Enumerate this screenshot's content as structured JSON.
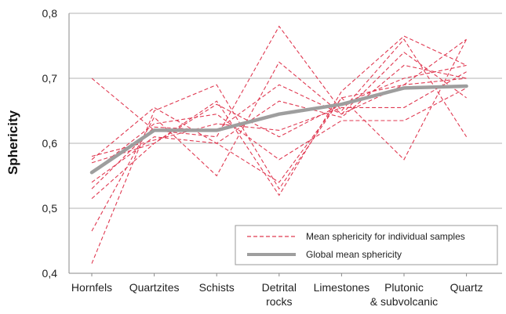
{
  "chart_data": {
    "type": "line",
    "title": "",
    "xlabel": "",
    "ylabel": "Sphericity",
    "ylim": [
      0.4,
      0.8
    ],
    "yticks": [
      "0,4",
      "0,5",
      "0,6",
      "0,7",
      "0,8"
    ],
    "categories": [
      [
        "Hornfels"
      ],
      [
        "Quartzites"
      ],
      [
        "Schists"
      ],
      [
        "Detrital",
        "rocks"
      ],
      [
        "Limestones"
      ],
      [
        "Plutonic",
        "& subvolcanic"
      ],
      [
        "Quartz"
      ]
    ],
    "grid": true,
    "legend_position": "bottom-right",
    "colors": {
      "samples": "#e03a52",
      "global": "#9e9e9e",
      "grid": "#b3b3b3"
    },
    "legend": {
      "samples_label": "Mean sphericity for individual samples",
      "global_label": "Global mean sphericity"
    },
    "samples": [
      [
        0.7,
        0.62,
        0.61,
        0.78,
        0.65,
        0.76,
        0.61
      ],
      [
        0.415,
        0.65,
        0.69,
        0.53,
        0.67,
        0.575,
        0.76
      ],
      [
        0.465,
        0.64,
        0.55,
        0.725,
        0.645,
        0.74,
        0.67
      ],
      [
        0.515,
        0.6,
        0.665,
        0.52,
        0.68,
        0.765,
        0.72
      ],
      [
        0.54,
        0.61,
        0.6,
        0.665,
        0.64,
        0.72,
        0.7
      ],
      [
        0.555,
        0.63,
        0.645,
        0.575,
        0.635,
        0.635,
        0.685
      ],
      [
        0.57,
        0.6,
        0.66,
        0.61,
        0.66,
        0.7,
        0.72
      ],
      [
        0.575,
        0.655,
        0.6,
        0.54,
        0.67,
        0.69,
        0.76
      ],
      [
        0.58,
        0.605,
        0.63,
        0.62,
        0.655,
        0.655,
        0.71
      ],
      [
        0.53,
        0.625,
        0.62,
        0.69,
        0.645,
        0.69,
        0.7
      ]
    ],
    "global_mean": [
      0.555,
      0.62,
      0.62,
      0.645,
      0.66,
      0.685,
      0.688
    ]
  }
}
